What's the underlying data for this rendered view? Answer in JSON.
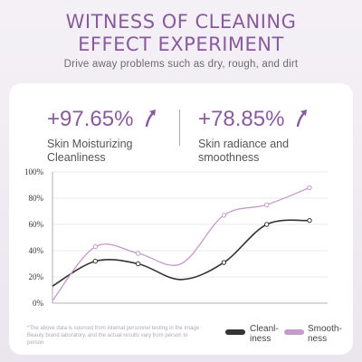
{
  "header": {
    "title_line1": "WITNESS OF CLEANING",
    "title_line2": "EFFECT EXPERIMENT",
    "subtitle": "Drive away problems such as dry, rough, and dirt"
  },
  "stats": [
    {
      "value": "+97.65%",
      "label": "Skin Moisturizing Cleanliness"
    },
    {
      "value": "+78.85%",
      "label": "Skin radiance and smoothness"
    }
  ],
  "colors": {
    "accent": "#8a5a9e",
    "cleanliness_line": "#333333",
    "smoothness_line": "#c49acb"
  },
  "icons": {
    "stat_arrow": "curved-up-arrow-icon"
  },
  "chart_data": {
    "type": "line",
    "x": [
      0,
      1,
      2,
      3,
      4,
      5,
      6
    ],
    "series": [
      {
        "name": "Cleanl-iness",
        "values": [
          13,
          32,
          30,
          18,
          31,
          60,
          63
        ]
      },
      {
        "name": "Smooth-ness",
        "values": [
          2,
          43,
          38,
          30,
          67,
          75,
          88
        ]
      }
    ],
    "marked_points": [
      1,
      2,
      4,
      5,
      6
    ],
    "yticks": [
      "0%",
      "20%",
      "40%",
      "60%",
      "80%",
      "100%"
    ],
    "ylim": [
      0,
      100
    ],
    "grid": "horizontal",
    "legend": "bottom-right"
  },
  "footnote": "*The above data is sourced from internal personnel testing in the Image Beauty brand laboratory, and the actual results vary from person to person"
}
